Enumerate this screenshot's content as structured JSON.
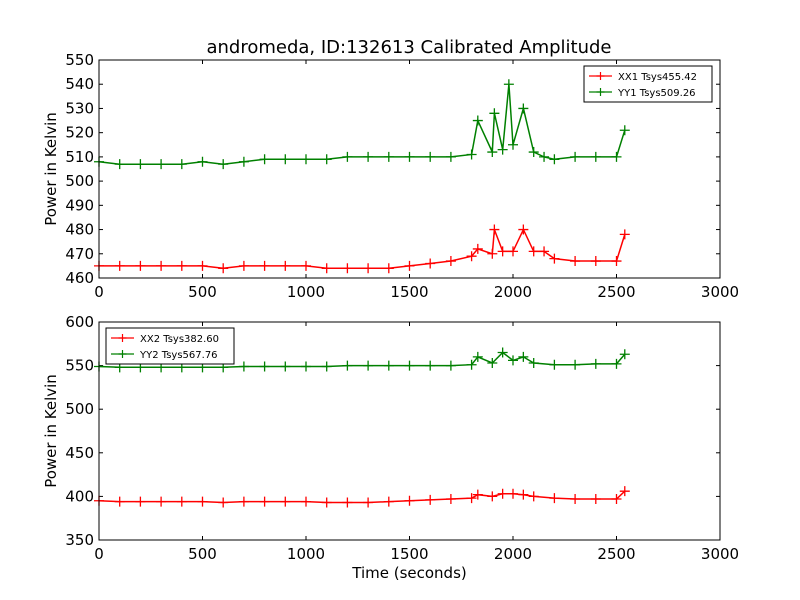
{
  "figure": {
    "title": "andromeda, ID:132613 Calibrated Amplitude"
  },
  "chart_data": [
    {
      "type": "line",
      "marker": "+",
      "title": "andromeda, ID:132613 Calibrated Amplitude",
      "xlabel": "",
      "ylabel": "Power in Kelvin",
      "xlim": [
        0,
        3000
      ],
      "ylim": [
        460,
        550
      ],
      "xticks": [
        0,
        500,
        1000,
        1500,
        2000,
        2500,
        3000
      ],
      "yticks": [
        460,
        470,
        480,
        490,
        500,
        510,
        520,
        530,
        540,
        550
      ],
      "grid": false,
      "legend_position": "top-right",
      "series": [
        {
          "name": "XX1 Tsys455.42",
          "color": "#ff0000",
          "x": [
            0,
            100,
            200,
            300,
            400,
            500,
            600,
            700,
            800,
            900,
            1000,
            1100,
            1200,
            1300,
            1400,
            1500,
            1600,
            1700,
            1800,
            1830,
            1900,
            1910,
            1950,
            2000,
            2050,
            2100,
            2150,
            2200,
            2300,
            2400,
            2500,
            2540
          ],
          "y": [
            465,
            465,
            465,
            465,
            465,
            465,
            464,
            465,
            465,
            465,
            465,
            464,
            464,
            464,
            464,
            465,
            466,
            467,
            469,
            472,
            470,
            480,
            471,
            471,
            480,
            471,
            471,
            468,
            467,
            467,
            467,
            478
          ]
        },
        {
          "name": "YY1 Tsys509.26",
          "color": "#008000",
          "x": [
            0,
            100,
            200,
            300,
            400,
            500,
            600,
            700,
            800,
            900,
            1000,
            1100,
            1200,
            1300,
            1400,
            1500,
            1600,
            1700,
            1800,
            1830,
            1900,
            1910,
            1950,
            1980,
            2000,
            2050,
            2100,
            2150,
            2200,
            2300,
            2400,
            2500,
            2540
          ],
          "y": [
            508,
            507,
            507,
            507,
            507,
            508,
            507,
            508,
            509,
            509,
            509,
            509,
            510,
            510,
            510,
            510,
            510,
            510,
            511,
            525,
            512,
            528,
            513,
            540,
            515,
            530,
            512,
            510,
            509,
            510,
            510,
            510,
            521
          ]
        }
      ]
    },
    {
      "type": "line",
      "marker": "+",
      "title": "",
      "xlabel": "Time (seconds)",
      "ylabel": "Power in Kelvin",
      "xlim": [
        0,
        3000
      ],
      "ylim": [
        350,
        600
      ],
      "xticks": [
        0,
        500,
        1000,
        1500,
        2000,
        2500,
        3000
      ],
      "yticks": [
        350,
        400,
        450,
        500,
        550,
        600
      ],
      "grid": false,
      "legend_position": "top-left",
      "series": [
        {
          "name": "XX2 Tsys382.60",
          "color": "#ff0000",
          "x": [
            0,
            100,
            200,
            300,
            400,
            500,
            600,
            700,
            800,
            900,
            1000,
            1100,
            1200,
            1300,
            1400,
            1500,
            1600,
            1700,
            1800,
            1830,
            1900,
            1950,
            2000,
            2050,
            2100,
            2200,
            2300,
            2400,
            2500,
            2540
          ],
          "y": [
            395,
            394,
            394,
            394,
            394,
            394,
            393,
            394,
            394,
            394,
            394,
            393,
            393,
            393,
            394,
            395,
            396,
            397,
            398,
            402,
            400,
            403,
            403,
            402,
            400,
            398,
            397,
            397,
            397,
            406
          ]
        },
        {
          "name": "YY2 Tsys567.76",
          "color": "#008000",
          "x": [
            0,
            100,
            200,
            300,
            400,
            500,
            600,
            700,
            800,
            900,
            1000,
            1100,
            1200,
            1300,
            1400,
            1500,
            1600,
            1700,
            1800,
            1830,
            1900,
            1950,
            2000,
            2050,
            2100,
            2200,
            2300,
            2400,
            2500,
            2540
          ],
          "y": [
            549,
            548,
            548,
            548,
            548,
            548,
            548,
            549,
            549,
            549,
            549,
            549,
            550,
            550,
            550,
            550,
            550,
            550,
            551,
            560,
            553,
            565,
            556,
            560,
            553,
            551,
            551,
            552,
            552,
            563
          ]
        }
      ]
    }
  ]
}
